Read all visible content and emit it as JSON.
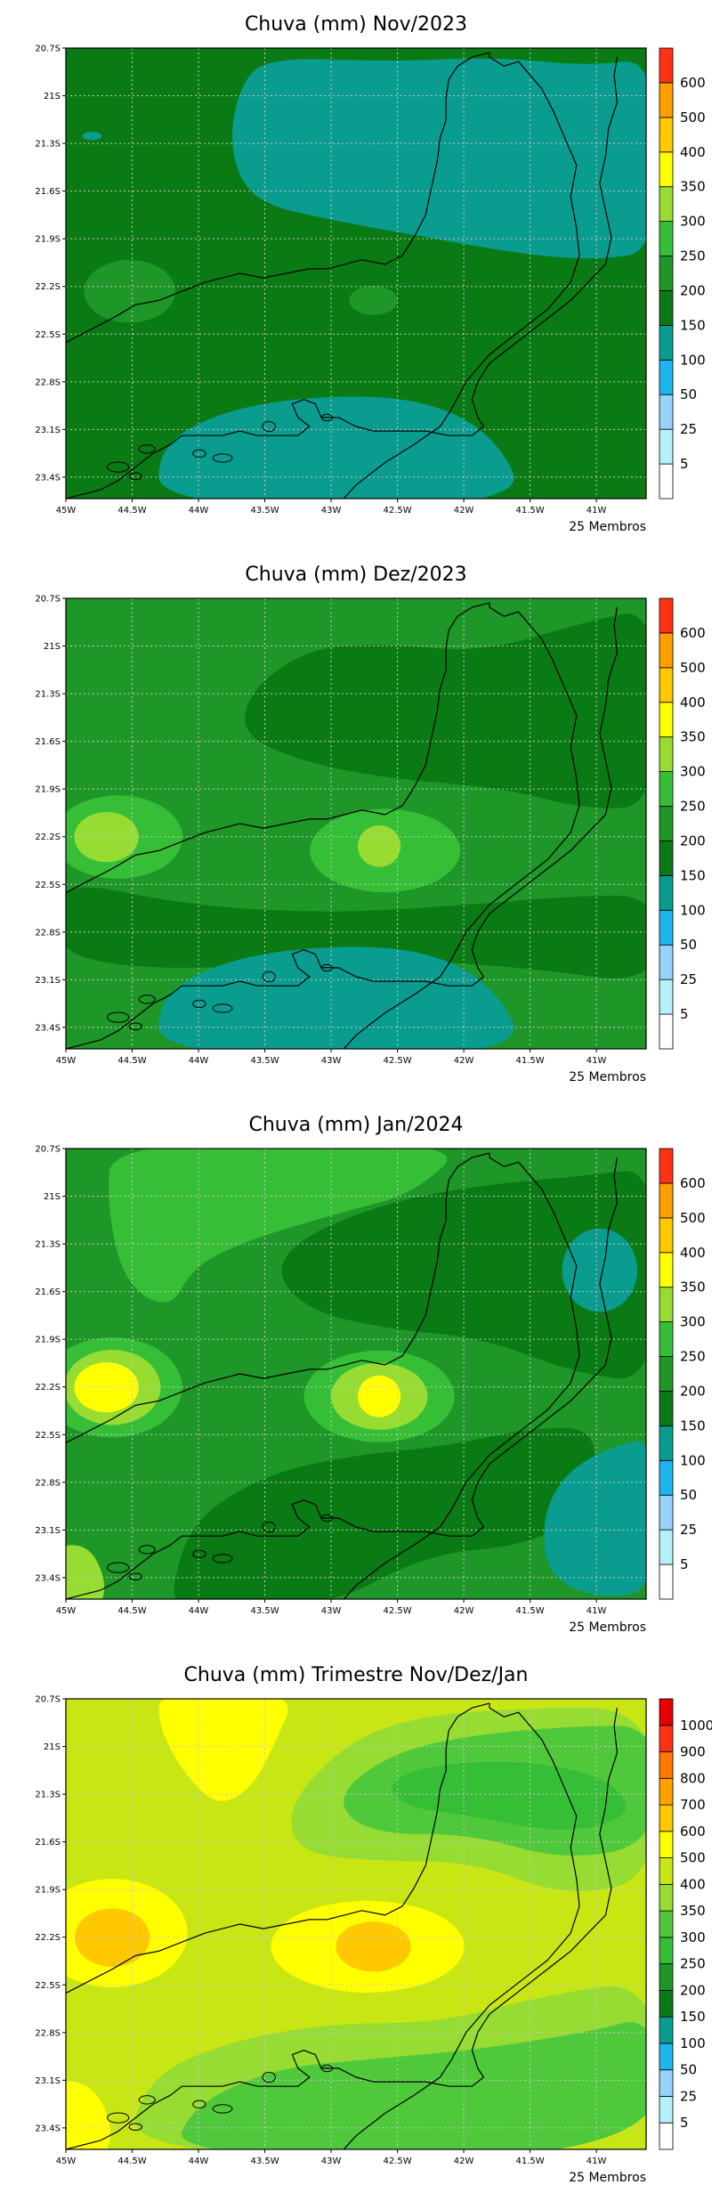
{
  "panels": [
    {
      "title": "Chuva (mm) Nov/2023",
      "members_label": "25 Membros",
      "x_ticks": [
        "45W",
        "44.5W",
        "44W",
        "43.5W",
        "43W",
        "42.5W",
        "42W",
        "41.5W",
        "41W"
      ],
      "y_ticks": [
        "20.7S",
        "21S",
        "21.3S",
        "21.6S",
        "21.9S",
        "22.2S",
        "22.5S",
        "22.8S",
        "23.1S",
        "23.4S"
      ],
      "colorbar": {
        "levels": [
          "5",
          "25",
          "50",
          "100",
          "150",
          "200",
          "250",
          "300",
          "350",
          "400",
          "500",
          "600"
        ],
        "colors": [
          "#ffffff",
          "#b4f0fa",
          "#96d2fa",
          "#1eb4f0",
          "#0a9c8e",
          "#0a7a14",
          "#1e9628",
          "#37be37",
          "#96dc32",
          "#ffff00",
          "#ffc800",
          "#ffa000",
          "#ff3214"
        ]
      },
      "field": {
        "background_color": "#0a7a14",
        "regions": [
          {
            "color": "#0a9c8e",
            "shape": "teal-northeast"
          },
          {
            "color": "#0a9c8e",
            "shape": "teal-south"
          },
          {
            "color": "#0a9c8e",
            "shape": "teal-speck"
          },
          {
            "color": "#1e9628",
            "shape": "blob-west"
          },
          {
            "color": "#1e9628",
            "shape": "blob-center"
          }
        ]
      }
    },
    {
      "title": "Chuva (mm) Dez/2023",
      "members_label": "25 Membros",
      "x_ticks": [
        "45W",
        "44.5W",
        "44W",
        "43.5W",
        "43W",
        "42.5W",
        "42W",
        "41.5W",
        "41W"
      ],
      "y_ticks": [
        "20.7S",
        "21S",
        "21.3S",
        "21.6S",
        "21.9S",
        "22.2S",
        "22.5S",
        "22.8S",
        "23.1S",
        "23.4S"
      ],
      "colorbar": {
        "levels": [
          "5",
          "25",
          "50",
          "100",
          "150",
          "200",
          "250",
          "300",
          "350",
          "400",
          "500",
          "600"
        ],
        "colors": [
          "#ffffff",
          "#b4f0fa",
          "#96d2fa",
          "#1eb4f0",
          "#0a9c8e",
          "#0a7a14",
          "#1e9628",
          "#37be37",
          "#96dc32",
          "#ffff00",
          "#ffc800",
          "#ffa000",
          "#ff3214"
        ]
      },
      "field": {
        "background_color": "#1e9628",
        "regions": [
          {
            "color": "#0a7a14",
            "shape": "dark-northeast"
          },
          {
            "color": "#0a7a14",
            "shape": "dark-band-south"
          },
          {
            "color": "#0a9c8e",
            "shape": "teal-south"
          },
          {
            "color": "#37be37",
            "shape": "blob-west-outer"
          },
          {
            "color": "#96dc32",
            "shape": "blob-west-inner"
          },
          {
            "color": "#37be37",
            "shape": "blob-center-outer"
          },
          {
            "color": "#96dc32",
            "shape": "blob-center-inner"
          }
        ]
      }
    },
    {
      "title": "Chuva (mm) Jan/2024",
      "members_label": "25 Membros",
      "x_ticks": [
        "45W",
        "44.5W",
        "44W",
        "43.5W",
        "43W",
        "42.5W",
        "42W",
        "41.5W",
        "41W"
      ],
      "y_ticks": [
        "20.7S",
        "21S",
        "21.3S",
        "21.6S",
        "21.9S",
        "22.2S",
        "22.5S",
        "22.8S",
        "23.1S",
        "23.4S"
      ],
      "colorbar": {
        "levels": [
          "5",
          "25",
          "50",
          "100",
          "150",
          "200",
          "250",
          "300",
          "350",
          "400",
          "500",
          "600"
        ],
        "colors": [
          "#ffffff",
          "#b4f0fa",
          "#96d2fa",
          "#1eb4f0",
          "#0a9c8e",
          "#0a7a14",
          "#1e9628",
          "#37be37",
          "#96dc32",
          "#ffff00",
          "#ffc800",
          "#ffa000",
          "#ff3214"
        ]
      },
      "field": {
        "background_color": "#1e9628",
        "regions": [
          {
            "color": "#37be37",
            "shape": "light-north"
          },
          {
            "color": "#0a7a14",
            "shape": "dark-east"
          },
          {
            "color": "#0a7a14",
            "shape": "dark-south"
          },
          {
            "color": "#0a9c8e",
            "shape": "teal-ne"
          },
          {
            "color": "#0a9c8e",
            "shape": "teal-se"
          },
          {
            "color": "#37be37",
            "shape": "blob-west-outer"
          },
          {
            "color": "#96dc32",
            "shape": "blob-west-mid"
          },
          {
            "color": "#ffff00",
            "shape": "blob-west-inner"
          },
          {
            "color": "#37be37",
            "shape": "blob-center-outer"
          },
          {
            "color": "#96dc32",
            "shape": "blob-center-mid"
          },
          {
            "color": "#ffff00",
            "shape": "blob-center-inner"
          },
          {
            "color": "#96dc32",
            "shape": "sw-corner"
          }
        ]
      }
    },
    {
      "title": "Chuva (mm) Trimestre Nov/Dez/Jan",
      "members_label": "25 Membros",
      "x_ticks": [
        "45W",
        "44.5W",
        "44W",
        "43.5W",
        "43W",
        "42.5W",
        "42W",
        "41.5W",
        "41W"
      ],
      "y_ticks": [
        "20.7S",
        "21S",
        "21.3S",
        "21.6S",
        "21.9S",
        "22.2S",
        "22.5S",
        "22.8S",
        "23.1S",
        "23.4S"
      ],
      "colorbar": {
        "levels": [
          "5",
          "25",
          "50",
          "100",
          "150",
          "200",
          "250",
          "300",
          "350",
          "400",
          "500",
          "600",
          "700",
          "800",
          "900",
          "1000"
        ],
        "colors": [
          "#ffffff",
          "#b4f0fa",
          "#96d2fa",
          "#1eb4f0",
          "#0a9c8e",
          "#0a7a14",
          "#1e9628",
          "#37be37",
          "#50c83c",
          "#96dc32",
          "#c8e614",
          "#ffff00",
          "#ffc800",
          "#ffa000",
          "#ff7800",
          "#ff3214",
          "#e60000"
        ]
      },
      "field": {
        "background_color": "#c8e614",
        "regions": [
          {
            "color": "#ffff00",
            "shape": "yellow-north"
          },
          {
            "color": "#96dc32",
            "shape": "green-northeast"
          },
          {
            "color": "#50c83c",
            "shape": "green-northeast-2"
          },
          {
            "color": "#37be37",
            "shape": "green-northeast-3"
          },
          {
            "color": "#96dc32",
            "shape": "green-south"
          },
          {
            "color": "#50c83c",
            "shape": "green-south-2"
          },
          {
            "color": "#ffff00",
            "shape": "blob-west-outer"
          },
          {
            "color": "#ffc800",
            "shape": "blob-west-inner"
          },
          {
            "color": "#ffff00",
            "shape": "blob-center-outer"
          },
          {
            "color": "#ffc800",
            "shape": "blob-center-inner"
          },
          {
            "color": "#ffff00",
            "shape": "sw-corner"
          }
        ]
      }
    }
  ]
}
